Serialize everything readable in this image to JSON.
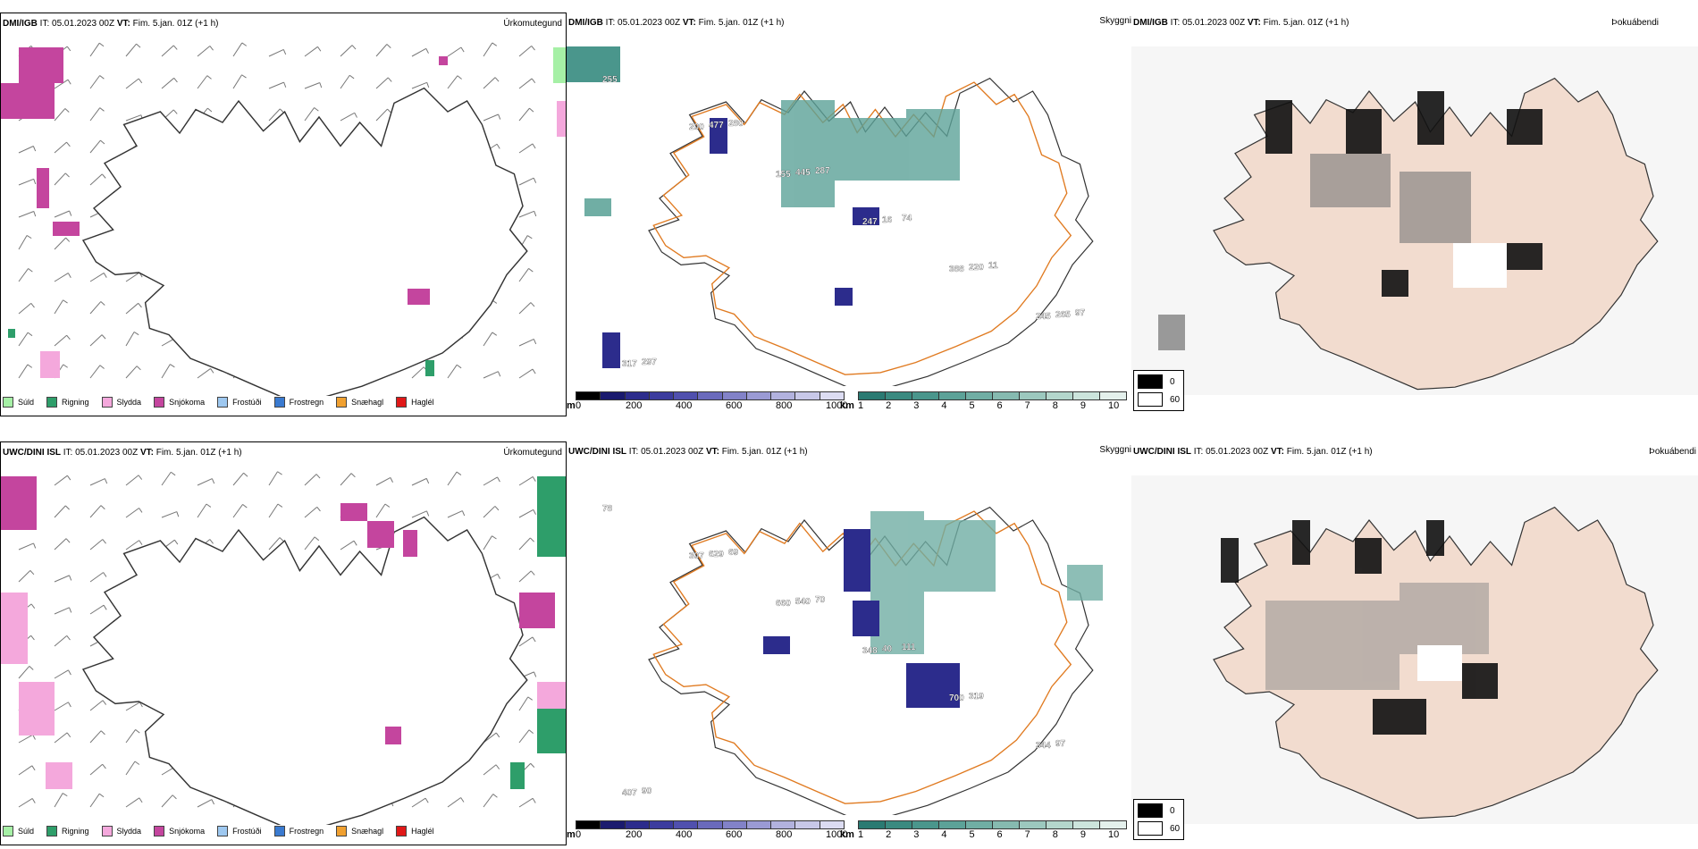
{
  "rows": [
    {
      "precip": {
        "model": "DMI/IGB",
        "rest_it": " IT: 05.01.2023 00Z ",
        "vt_label": "VT:",
        "vt": " Fim. 5.jan. 01Z",
        "lead": " (+1 h)",
        "title_right": "Úrkomutegund"
      },
      "cloud": {
        "model": "DMI/IGB",
        "rest_it": " IT: 05.01.2023 00Z ",
        "vt_label": "VT:",
        "vt": " Fim. 5.jan. 01Z",
        "lead": " (+1 h)",
        "title_right": "Skyggni"
      },
      "fog": {
        "model": "DMI/IGB",
        "rest_it": " IT: 05.01.2023 00Z ",
        "vt_label": "VT:",
        "vt": " Fim. 5.jan. 01Z",
        "lead": " (+1 h)",
        "title_right": "Þokuábendi"
      },
      "cloud_labels": [
        "255",
        "200",
        "155",
        "247",
        "388",
        "245",
        "317",
        "477",
        "445",
        "16",
        "220",
        "265",
        "297",
        "280",
        "287",
        "74",
        "11",
        "97"
      ]
    },
    {
      "precip": {
        "model": "UWC/DINI ISL",
        "rest_it": " IT: 05.01.2023 00Z ",
        "vt_label": "VT:",
        "vt": " Fim. 5.jan. 01Z",
        "lead": " (+1 h)",
        "title_right": "Úrkomutegund"
      },
      "cloud": {
        "model": "UWC/DINI ISL",
        "rest_it": " IT: 05.01.2023 00Z ",
        "vt_label": "VT:",
        "vt": " Fim. 5.jan. 01Z",
        "lead": " (+1 h)",
        "title_right": "Skyggni"
      },
      "fog": {
        "model": "UWC/DINI ISL",
        "rest_it": " IT: 05.01.2023 00Z ",
        "vt_label": "VT:",
        "vt": " Fim. 5.jan. 01Z",
        "lead": " (+1 h)",
        "title_right": "Þokuábendi"
      },
      "cloud_labels": [
        "78",
        "307",
        "660",
        "348",
        "700",
        "344",
        "407",
        "629",
        "540",
        "40",
        "319",
        "97",
        "90",
        "69",
        "70",
        "111"
      ]
    }
  ],
  "precip_legend": [
    {
      "label": "Súld",
      "color": "#a6f0a6"
    },
    {
      "label": "Rigning",
      "color": "#2e9e6a"
    },
    {
      "label": "Slydda",
      "color": "#f4a8dc"
    },
    {
      "label": "Snjókoma",
      "color": "#c4459e"
    },
    {
      "label": "Frostúði",
      "color": "#9ec8f0"
    },
    {
      "label": "Frostregn",
      "color": "#3a7ad0"
    },
    {
      "label": "Snæhagl",
      "color": "#f0a030"
    },
    {
      "label": "Haglél",
      "color": "#e01818"
    }
  ],
  "cloudbase_bar": {
    "unit": "m",
    "ticks": [
      "0",
      "200",
      "400",
      "600",
      "800",
      "1000"
    ],
    "colors": [
      "#000000",
      "#1a1a6e",
      "#2c2c8c",
      "#3c3c9e",
      "#5050ae",
      "#6a6abc",
      "#8282c8",
      "#9a9ad4",
      "#b2b2de",
      "#c8c8e8",
      "#dcdcf2"
    ]
  },
  "visibility_bar": {
    "unit": "km",
    "ticks": [
      "1",
      "2",
      "3",
      "4",
      "5",
      "6",
      "7",
      "8",
      "9",
      "10"
    ],
    "colors": [
      "#2a7a72",
      "#3a8a80",
      "#4a968c",
      "#5ca298",
      "#70aea4",
      "#86bab0",
      "#9cc8be",
      "#b4d6cc",
      "#cce4dc",
      "#e4f0ec"
    ]
  },
  "fog_legend": [
    {
      "label": "0",
      "color": "#000000"
    },
    {
      "label": "60",
      "color": "#ffffff"
    }
  ]
}
